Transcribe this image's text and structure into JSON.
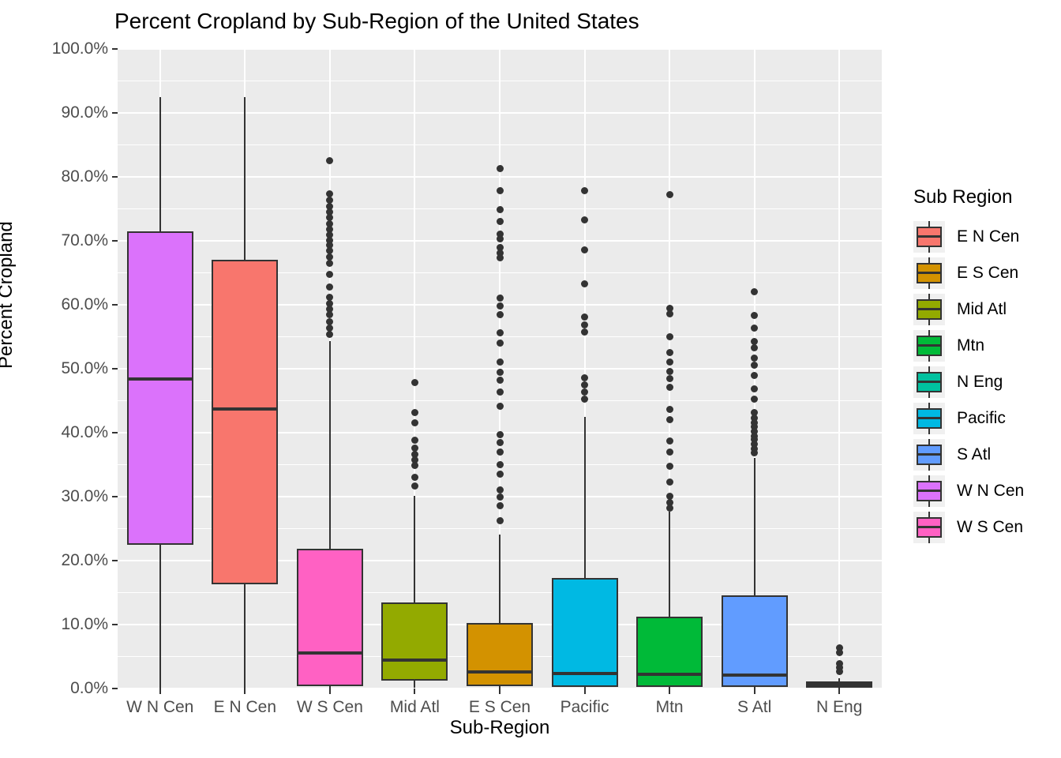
{
  "title": "Percent Cropland by Sub-Region of the United States",
  "axes": {
    "y_title": "Percent Cropland",
    "x_title": "Sub-Region",
    "y_tick_labels": [
      "0.0%",
      "10.0%",
      "20.0%",
      "30.0%",
      "40.0%",
      "50.0%",
      "60.0%",
      "70.0%",
      "80.0%",
      "90.0%",
      "100.0%"
    ],
    "y_range": [
      0,
      100
    ]
  },
  "legend": {
    "title": "Sub Region",
    "entries": [
      {
        "label": "E N Cen",
        "color": "#F8766D"
      },
      {
        "label": "E S Cen",
        "color": "#D39200"
      },
      {
        "label": "Mid Atl",
        "color": "#93AA00"
      },
      {
        "label": "Mtn",
        "color": "#00BA38"
      },
      {
        "label": "N Eng",
        "color": "#00C19F"
      },
      {
        "label": "Pacific",
        "color": "#00B9E3"
      },
      {
        "label": "S Atl",
        "color": "#619CFF"
      },
      {
        "label": "W N Cen",
        "color": "#DB72FB"
      },
      {
        "label": "W S Cen",
        "color": "#FF61C3"
      }
    ]
  },
  "style_colors": {
    "panel_background": "#EBEBEB",
    "gridline": "#FFFFFF",
    "box_border": "#333333",
    "outlier_dot": "#333333",
    "tick_label": "#4D4D4D",
    "legend_key_background": "#F0F0F0"
  },
  "chart_data": {
    "type": "boxplot",
    "title": "Percent Cropland by Sub-Region of the United States",
    "xlabel": "Sub-Region",
    "ylabel": "Percent Cropland",
    "ylim": [
      0,
      100
    ],
    "y_major_step": 10,
    "y_minor_step": 5,
    "grid": true,
    "legend_position": "right",
    "categories": [
      "W N Cen",
      "E N Cen",
      "W S Cen",
      "Mid Atl",
      "E S Cen",
      "Pacific",
      "Mtn",
      "S Atl",
      "N Eng"
    ],
    "series": [
      {
        "name": "W N Cen",
        "color": "#DB72FB",
        "whisker_low": 0.0,
        "q1": 22.5,
        "median": 48.4,
        "q3": 71.5,
        "whisker_high": 92.5,
        "outliers": []
      },
      {
        "name": "E N Cen",
        "color": "#F8766D",
        "whisker_low": 0.0,
        "q1": 16.3,
        "median": 43.7,
        "q3": 67.0,
        "whisker_high": 92.5,
        "outliers": []
      },
      {
        "name": "W S Cen",
        "color": "#FF61C3",
        "whisker_low": 0.05,
        "q1": 0.4,
        "median": 5.5,
        "q3": 21.8,
        "whisker_high": 54.3,
        "outliers": [
          82.5,
          77.4,
          76.3,
          75.4,
          74.5,
          73.6,
          72.7,
          71.8,
          70.9,
          70.1,
          69.3,
          68.4,
          67.5,
          66.5,
          64.7,
          62.8,
          61.2,
          60.2,
          59.3,
          58.4,
          57.4,
          56.4,
          55.4
        ]
      },
      {
        "name": "Mid Atl",
        "color": "#93AA00",
        "whisker_low": 0.1,
        "q1": 1.2,
        "median": 4.5,
        "q3": 13.5,
        "whisker_high": 30.1,
        "outliers": [
          47.8,
          43.2,
          41.5,
          38.8,
          37.6,
          36.6,
          35.7,
          34.9,
          33.0,
          31.7
        ]
      },
      {
        "name": "E S Cen",
        "color": "#D39200",
        "whisker_low": 0.05,
        "q1": 0.4,
        "median": 2.6,
        "q3": 10.2,
        "whisker_high": 24.1,
        "outliers": [
          81.3,
          77.8,
          74.9,
          73.0,
          71.0,
          70.3,
          69.0,
          68.1,
          67.4,
          61.0,
          59.8,
          58.5,
          55.6,
          54.0,
          51.1,
          49.5,
          48.2,
          46.4,
          44.1,
          39.7,
          38.4,
          37.0,
          35.0,
          33.5,
          31.0,
          29.9,
          28.6,
          26.2
        ]
      },
      {
        "name": "Pacific",
        "color": "#00B9E3",
        "whisker_low": 0.05,
        "q1": 0.3,
        "median": 2.3,
        "q3": 17.3,
        "whisker_high": 42.5,
        "outliers": [
          77.8,
          73.3,
          68.6,
          63.3,
          58.1,
          56.8,
          55.7,
          48.6,
          47.5,
          46.3,
          45.2
        ]
      },
      {
        "name": "Mtn",
        "color": "#00BA38",
        "whisker_low": 0.05,
        "q1": 0.3,
        "median": 2.2,
        "q3": 11.2,
        "whisker_high": 27.6,
        "outliers": [
          77.2,
          59.5,
          58.6,
          55.0,
          52.5,
          51.1,
          49.6,
          48.5,
          47.1,
          43.6,
          42.0,
          38.7,
          37.0,
          34.7,
          32.3,
          30.1,
          29.1,
          28.2
        ]
      },
      {
        "name": "S Atl",
        "color": "#619CFF",
        "whisker_low": 0.05,
        "q1": 0.3,
        "median": 2.1,
        "q3": 14.6,
        "whisker_high": 36.0,
        "outliers": [
          62.0,
          58.3,
          56.4,
          54.2,
          53.3,
          51.7,
          50.6,
          49.0,
          46.9,
          45.3,
          43.2,
          42.3,
          41.6,
          40.9,
          40.2,
          39.5,
          38.9,
          38.2,
          37.5,
          36.9
        ]
      },
      {
        "name": "N Eng",
        "color": "#00C19F",
        "whisker_low": 0.0,
        "q1": 0.1,
        "median": 0.65,
        "q3": 1.1,
        "whisker_high": 1.6,
        "outliers": [
          6.3,
          5.6,
          3.9,
          3.3,
          2.7
        ]
      }
    ]
  }
}
